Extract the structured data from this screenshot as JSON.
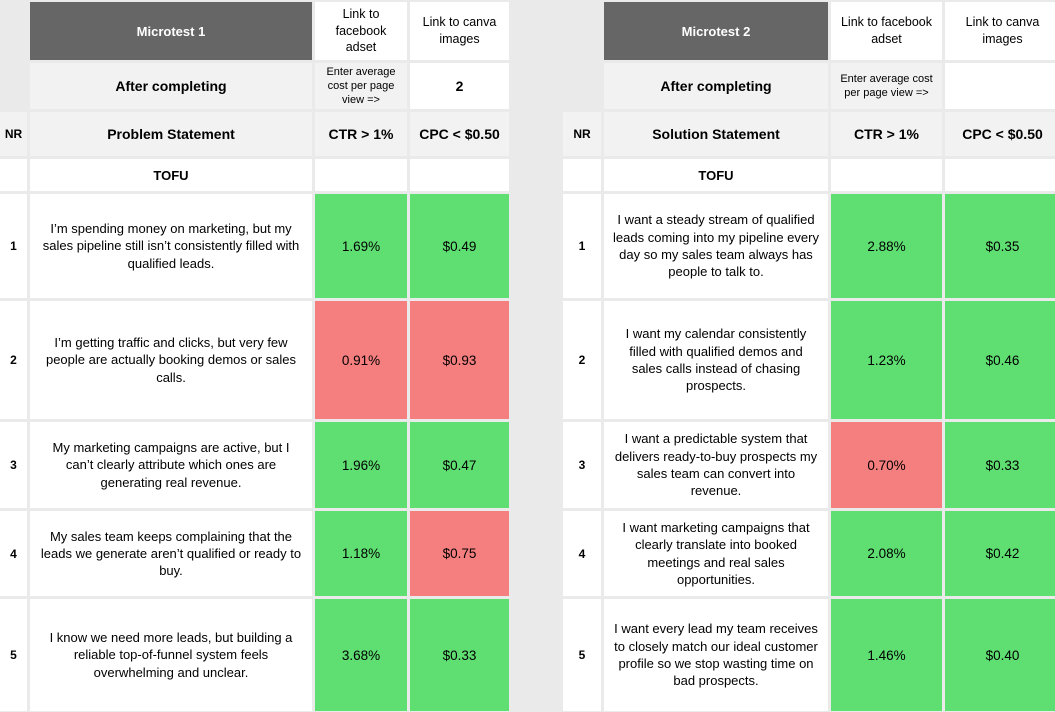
{
  "colors": {
    "pass": "#5fdf72",
    "fail": "#f57e7e",
    "header-dark": "#666666",
    "header-light": "#f2f2f2",
    "page-bg": "#eaeaea"
  },
  "tables": [
    {
      "title": "Microtest 1",
      "link_facebook_label": "Link to facebook adset",
      "link_canva_label": "Link to canva images",
      "after_completing_label": "After completing",
      "avg_cost_prompt": "Enter average cost per page view =>",
      "canva_value": "2",
      "nr_label": "NR",
      "statement_header": "Problem Statement",
      "ctr_header": "CTR > 1%",
      "cpc_header": "CPC < $0.50",
      "section_label": "TOFU",
      "rows": [
        {
          "nr": "1",
          "statement": "I’m spending money on marketing, but my sales pipeline still isn’t consistently filled with qualified leads.",
          "ctr": "1.69%",
          "ctr_status": "pass",
          "cpc": "$0.49",
          "cpc_status": "pass"
        },
        {
          "nr": "2",
          "statement": "I’m getting traffic and clicks, but very few people are actually booking demos or sales calls.",
          "ctr": "0.91%",
          "ctr_status": "fail",
          "cpc": "$0.93",
          "cpc_status": "fail"
        },
        {
          "nr": "3",
          "statement": "My marketing campaigns are active, but I can’t clearly attribute which ones are generating real revenue.",
          "ctr": "1.96%",
          "ctr_status": "pass",
          "cpc": "$0.47",
          "cpc_status": "pass"
        },
        {
          "nr": "4",
          "statement": "My sales team keeps complaining that the leads we generate aren’t qualified or ready to buy.",
          "ctr": "1.18%",
          "ctr_status": "pass",
          "cpc": "$0.75",
          "cpc_status": "fail"
        },
        {
          "nr": "5",
          "statement": "I know we need more leads, but building a reliable top-of-funnel system feels overwhelming and unclear.",
          "ctr": "3.68%",
          "ctr_status": "pass",
          "cpc": "$0.33",
          "cpc_status": "pass"
        }
      ]
    },
    {
      "title": "Microtest 2",
      "link_facebook_label": "Link to facebook adset",
      "link_canva_label": "Link to canva images",
      "after_completing_label": "After completing",
      "avg_cost_prompt": "Enter average cost per page view =>",
      "canva_value": "",
      "nr_label": "NR",
      "statement_header": "Solution Statement",
      "ctr_header": "CTR > 1%",
      "cpc_header": "CPC < $0.50",
      "section_label": "TOFU",
      "rows": [
        {
          "nr": "1",
          "statement": "I want a steady stream of qualified leads coming into my pipeline every day so my sales team always has people to talk to.",
          "ctr": "2.88%",
          "ctr_status": "pass",
          "cpc": "$0.35",
          "cpc_status": "pass"
        },
        {
          "nr": "2",
          "statement": "I want my calendar consistently filled with qualified demos and sales calls instead of chasing prospects.",
          "ctr": "1.23%",
          "ctr_status": "pass",
          "cpc": "$0.46",
          "cpc_status": "pass"
        },
        {
          "nr": "3",
          "statement": "I want a predictable system that delivers ready-to-buy prospects my sales team can convert into revenue.",
          "ctr": "0.70%",
          "ctr_status": "fail",
          "cpc": "$0.33",
          "cpc_status": "pass"
        },
        {
          "nr": "4",
          "statement": "I want marketing campaigns that clearly translate into booked meetings and real sales opportunities.",
          "ctr": "2.08%",
          "ctr_status": "pass",
          "cpc": "$0.42",
          "cpc_status": "pass"
        },
        {
          "nr": "5",
          "statement": "I want every lead my team receives to closely match our ideal customer profile so we stop wasting time on bad prospects.",
          "ctr": "1.46%",
          "ctr_status": "pass",
          "cpc": "$0.40",
          "cpc_status": "pass"
        }
      ]
    }
  ]
}
